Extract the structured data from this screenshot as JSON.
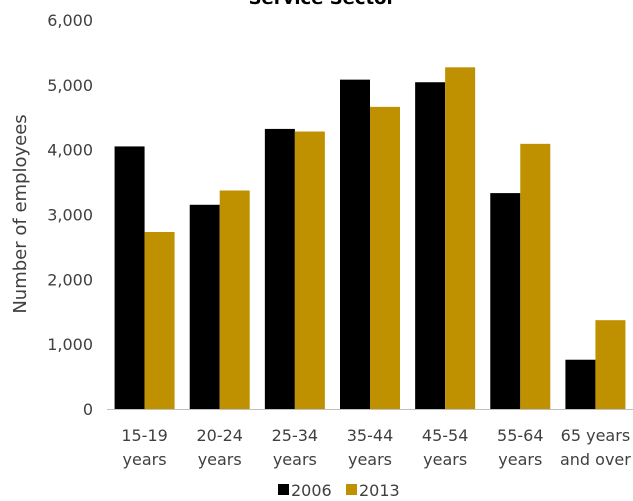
{
  "chart_data": {
    "type": "bar",
    "title": "Service Sector",
    "ylabel": "Number of employees",
    "xlabel": "",
    "ylim": [
      0,
      6000
    ],
    "yticks": [
      "0",
      "1,000",
      "2,000",
      "3,000",
      "4,000",
      "5,000",
      "6,000"
    ],
    "categories": [
      [
        "15-19",
        "years"
      ],
      [
        "20-24",
        "years"
      ],
      [
        "25-34",
        "years"
      ],
      [
        "35-44",
        "years"
      ],
      [
        "45-54",
        "years"
      ],
      [
        "55-64",
        "years"
      ],
      [
        "65 years",
        "and over"
      ]
    ],
    "series": [
      {
        "name": "2006",
        "color": "#000000",
        "values": [
          4050,
          3150,
          4320,
          5080,
          5040,
          3330,
          760
        ]
      },
      {
        "name": "2013",
        "color": "#BF9000",
        "values": [
          2730,
          3370,
          4280,
          4660,
          5270,
          4090,
          1370
        ]
      }
    ],
    "grid": false,
    "legend_position": "bottom"
  }
}
